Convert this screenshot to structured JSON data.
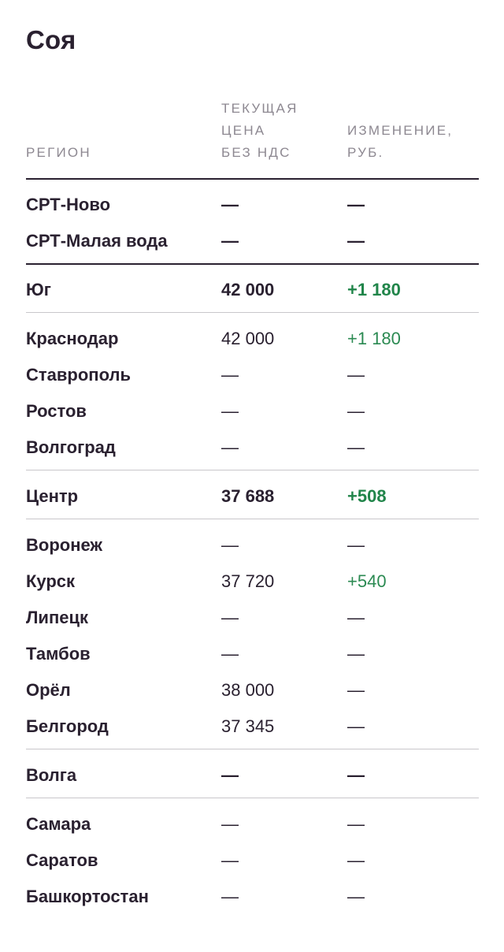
{
  "title": "Соя",
  "headers": {
    "region": "РЕГИОН",
    "price_line1": "ТЕКУЩАЯ",
    "price_line2": "ЦЕНА",
    "price_line3": "БЕЗ НДС",
    "change_line1": "ИЗМЕНЕНИЕ,",
    "change_line2": "РУБ."
  },
  "colors": {
    "text": "#2a2130",
    "muted_header": "#8d8891",
    "positive": "#2b8a52",
    "divider": "#c9c7cb"
  },
  "rows": [
    {
      "region": "СРТ-Ново",
      "price": "—",
      "change": "—",
      "style": "bold"
    },
    {
      "region": "СРТ-Малая вода",
      "price": "—",
      "change": "—",
      "style": "bold"
    },
    {
      "region": "Юг",
      "price": "42 000",
      "change": "+1 180",
      "style": "bold"
    },
    {
      "region": "Краснодар",
      "price": "42 000",
      "change": "+1 180",
      "style": "light"
    },
    {
      "region": "Ставрополь",
      "price": "—",
      "change": "—",
      "style": "light"
    },
    {
      "region": "Ростов",
      "price": "—",
      "change": "—",
      "style": "light"
    },
    {
      "region": "Волгоград",
      "price": "—",
      "change": "—",
      "style": "light"
    },
    {
      "region": "Центр",
      "price": "37 688",
      "change": "+508",
      "style": "bold"
    },
    {
      "region": "Воронеж",
      "price": "—",
      "change": "—",
      "style": "light"
    },
    {
      "region": "Курск",
      "price": "37 720",
      "change": "+540",
      "style": "light"
    },
    {
      "region": "Липецк",
      "price": "—",
      "change": "—",
      "style": "light"
    },
    {
      "region": "Тамбов",
      "price": "—",
      "change": "—",
      "style": "light"
    },
    {
      "region": "Орёл",
      "price": "38 000",
      "change": "—",
      "style": "light"
    },
    {
      "region": "Белгород",
      "price": "37 345",
      "change": "—",
      "style": "light"
    },
    {
      "region": "Волга",
      "price": "—",
      "change": "—",
      "style": "bold"
    },
    {
      "region": "Самара",
      "price": "—",
      "change": "—",
      "style": "light"
    },
    {
      "region": "Саратов",
      "price": "—",
      "change": "—",
      "style": "light"
    },
    {
      "region": "Башкортостан",
      "price": "—",
      "change": "—",
      "style": "light"
    }
  ]
}
